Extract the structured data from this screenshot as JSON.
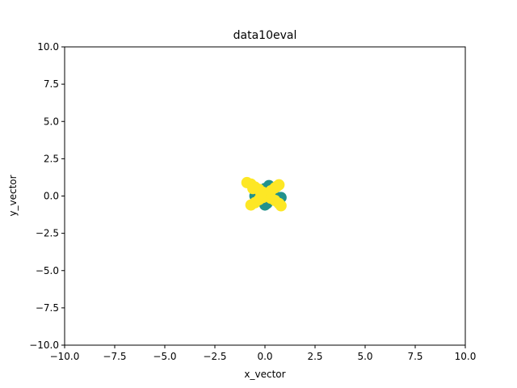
{
  "chart_data": {
    "type": "scatter",
    "title": "data10eval",
    "xlabel": "x_vector",
    "ylabel": "y_vector",
    "xlim": [
      -10,
      10
    ],
    "ylim": [
      -10,
      10
    ],
    "xticks": [
      -10,
      -7.5,
      -5,
      -2.5,
      0,
      2.5,
      5,
      7.5,
      10
    ],
    "yticks": [
      -10,
      -7.5,
      -5,
      -2.5,
      0,
      2.5,
      5,
      7.5,
      10
    ],
    "xtick_labels": [
      "−10.0",
      "−7.5",
      "−5.0",
      "−2.5",
      "0.0",
      "2.5",
      "5.0",
      "7.5",
      "10.0"
    ],
    "ytick_labels": [
      "−10.0",
      "−7.5",
      "−5.0",
      "−2.5",
      "0.0",
      "2.5",
      "5.0",
      "7.5",
      "10.0"
    ],
    "grid": false,
    "series": [
      {
        "color": "#21918c",
        "x": [
          0.0,
          0.2,
          0.5,
          0.8,
          -0.5,
          -0.2,
          0.1,
          0.0,
          -0.3,
          0.3,
          0.0,
          0.4,
          -0.4
        ],
        "y": [
          0.5,
          0.7,
          0.0,
          -0.1,
          0.0,
          0.3,
          -0.5,
          -0.6,
          -0.3,
          0.2,
          0.0,
          -0.2,
          0.2
        ]
      },
      {
        "color": "#fde725",
        "x": [
          -0.9,
          -0.7,
          -0.5,
          -0.3,
          -0.1,
          0.1,
          0.3,
          0.5,
          0.7,
          0.8,
          0.7,
          0.5,
          0.3,
          0.1,
          -0.1,
          -0.3,
          -0.5,
          -0.7,
          0.0,
          0.2,
          -0.2,
          0.6,
          -0.6
        ],
        "y": [
          0.9,
          0.8,
          0.6,
          0.45,
          0.25,
          0.05,
          -0.15,
          -0.3,
          -0.5,
          -0.65,
          0.75,
          0.55,
          0.35,
          0.1,
          -0.1,
          -0.25,
          -0.45,
          -0.6,
          0.0,
          0.2,
          0.15,
          0.65,
          0.5
        ]
      }
    ]
  }
}
